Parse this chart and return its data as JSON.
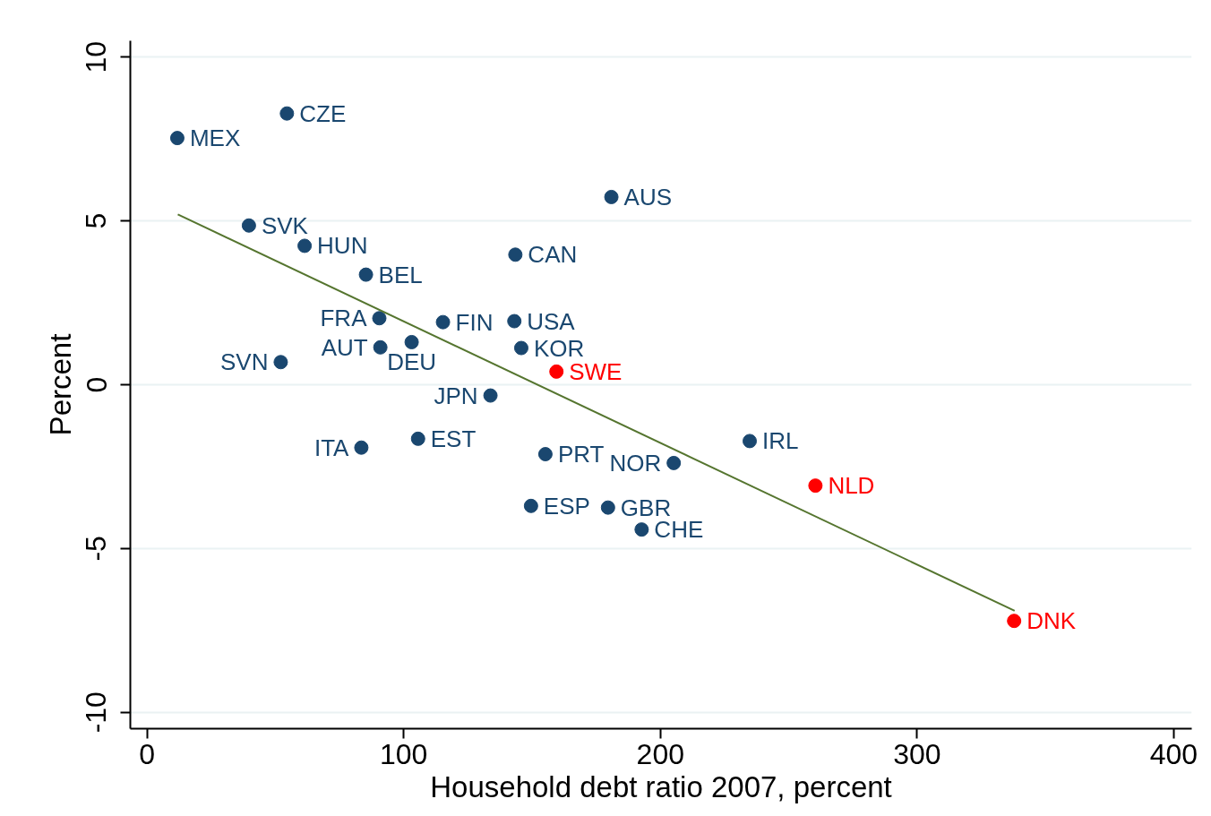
{
  "chart_data": {
    "type": "scatter",
    "xlabel": "Household debt ratio 2007, percent",
    "ylabel": "Percent",
    "xlim": [
      -6.5,
      407
    ],
    "ylim": [
      -10.5,
      10.5
    ],
    "xticks": [
      0,
      100,
      200,
      300,
      400
    ],
    "yticks": [
      -10,
      -5,
      0,
      5,
      10
    ],
    "grid": "y",
    "marker": "circle",
    "series": [
      {
        "color": "#1a476f",
        "x": [
          11.8,
          54.5,
          39.7,
          61.4,
          85.3,
          143.5,
          180.9,
          90.5,
          115.3,
          143.1,
          103.1,
          90.9,
          145.8,
          52.1,
          133.8,
          83.5,
          105.6,
          155.2,
          205.2,
          234.8,
          149.6,
          179.6,
          192.7
        ],
        "values": [
          7.53,
          8.28,
          4.86,
          4.24,
          3.36,
          3.97,
          5.73,
          2.03,
          1.91,
          1.94,
          1.3,
          1.14,
          1.12,
          0.69,
          -0.33,
          -1.92,
          -1.65,
          -2.12,
          -2.39,
          -1.72,
          -3.7,
          -3.75,
          -4.42
        ],
        "value_labels": [
          "MEX",
          "CZE",
          "SVK",
          "HUN",
          "BEL",
          "CAN",
          "AUS",
          "FRA",
          "FIN",
          "USA",
          "DEU",
          "AUT",
          "KOR",
          "SVN",
          "JPN",
          "ITA",
          "EST",
          "PRT",
          "NOR",
          "IRL",
          "ESP",
          "GBR",
          "CHE"
        ]
      },
      {
        "color": "#ff0000",
        "x": [
          159.5,
          260.4,
          337.8
        ],
        "values": [
          0.4,
          -3.08,
          -7.21
        ],
        "value_labels": [
          "SWE",
          "NLD",
          "DNK"
        ]
      },
      {
        "type": "line",
        "color": "#55752f",
        "marker": "none",
        "x": [
          12,
          338
        ],
        "values": [
          5.2,
          -6.9
        ]
      }
    ]
  }
}
